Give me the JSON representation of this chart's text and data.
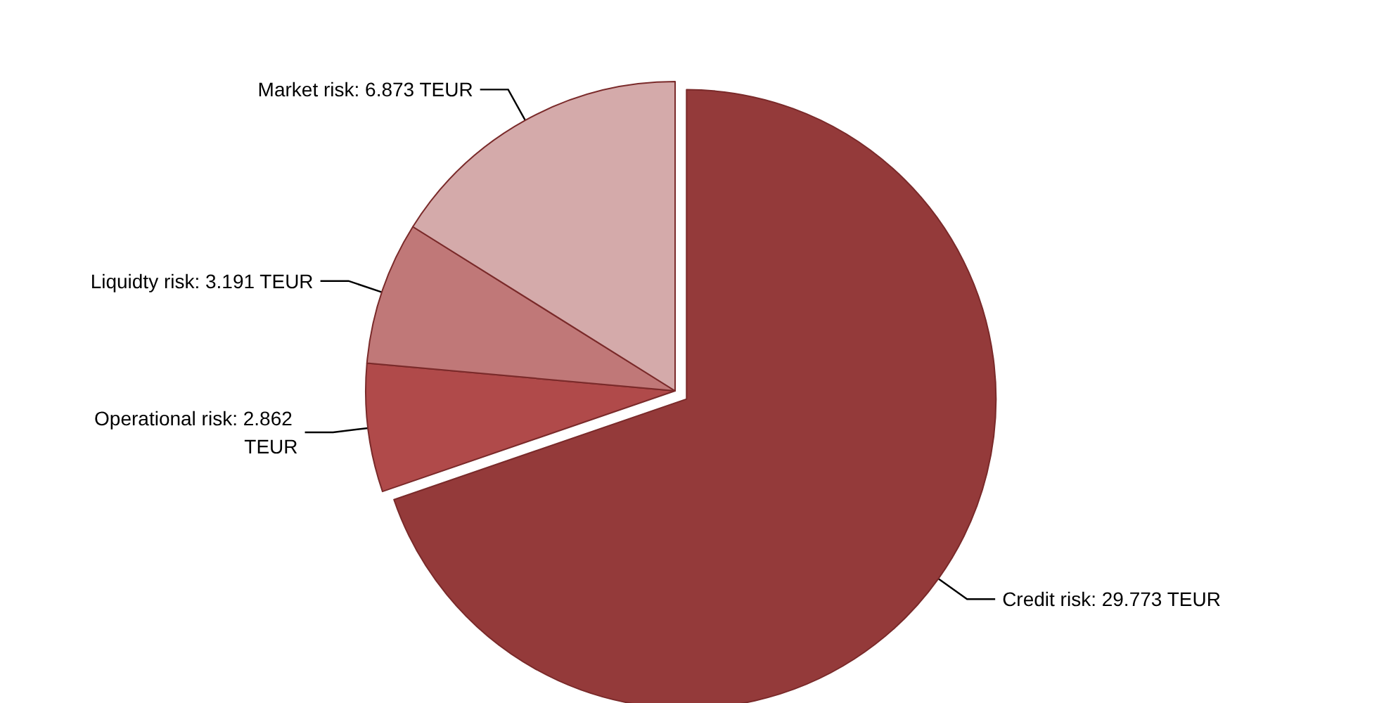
{
  "chart_data": {
    "type": "pie",
    "categories": [
      "Credit risk",
      "Operational risk",
      "Liquidty risk",
      "Market risk"
    ],
    "values": [
      29.773,
      2.862,
      3.191,
      6.873
    ],
    "value_labels": [
      "29.773 TEUR",
      "2.862 TEUR",
      "3.191 TEUR",
      "6.873 TEUR"
    ],
    "colors": [
      "#943a3a",
      "#b04a4a",
      "#c07878",
      "#d4aaaa"
    ],
    "legend": false
  }
}
